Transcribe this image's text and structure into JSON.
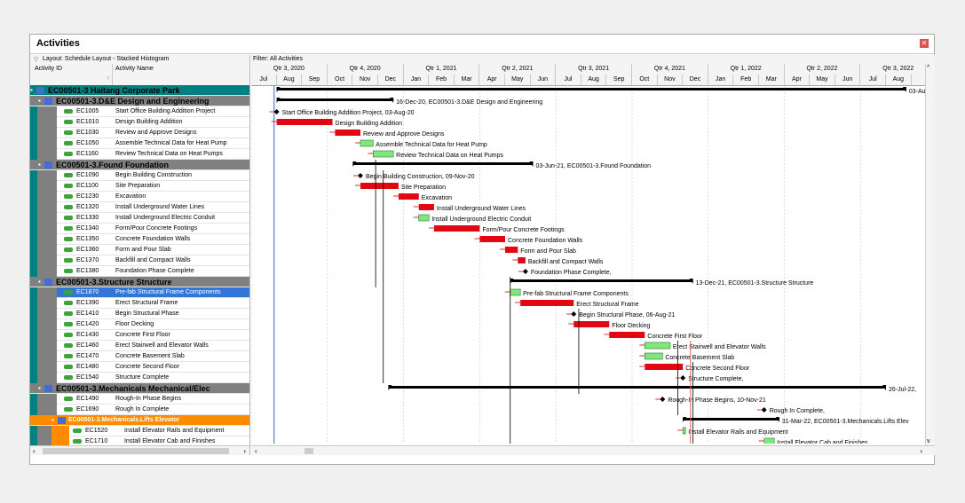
{
  "window": {
    "title": "Activities"
  },
  "left": {
    "layout_label": "Layout: Schedule Layout - Stacked Histogram",
    "col_id": "Activity ID",
    "col_name": "Activity Name"
  },
  "right": {
    "filter_label": "Filter: All Activities",
    "quarters": [
      "Qtr 3, 2020",
      "Qtr 4, 2020",
      "Qtr 1, 2021",
      "Qtr 2, 2021",
      "Qtr 3, 2021",
      "Qtr 4, 2021",
      "Qtr 1, 2022",
      "Qtr 2, 2022",
      "Qtr 3, 2022"
    ],
    "months": [
      "Jul",
      "Aug",
      "Sep",
      "Oct",
      "Nov",
      "Dec",
      "Jan",
      "Feb",
      "Mar",
      "Apr",
      "May",
      "Jun",
      "Jul",
      "Aug",
      "Sep",
      "Oct",
      "Nov",
      "Dec",
      "Jan",
      "Feb",
      "Mar",
      "Apr",
      "May",
      "Jun",
      "Jul",
      "Aug"
    ]
  },
  "rows": [
    {
      "type": "group0",
      "name": "EC00501-3  Haitang Corporate Park"
    },
    {
      "type": "group",
      "name": "EC00501-3.D&E  Design and Engineering"
    },
    {
      "type": "act",
      "id": "EC1005",
      "name": "Start Office Building Addition Project"
    },
    {
      "type": "act",
      "id": "EC1010",
      "name": "Design Building Addition"
    },
    {
      "type": "act",
      "id": "EC1030",
      "name": "Review and Approve Designs"
    },
    {
      "type": "act",
      "id": "EC1050",
      "name": "Assemble Technical Data for Heat Pump"
    },
    {
      "type": "act",
      "id": "EC1160",
      "name": "Review Technical Data on Heat Pumps"
    },
    {
      "type": "group",
      "name": "EC00501-3.Found  Foundation"
    },
    {
      "type": "act",
      "id": "EC1090",
      "name": "Begin Building Construction"
    },
    {
      "type": "act",
      "id": "EC1100",
      "name": "Site Preparation"
    },
    {
      "type": "act",
      "id": "EC1230",
      "name": "Excavation"
    },
    {
      "type": "act",
      "id": "EC1320",
      "name": "Install Underground Water Lines"
    },
    {
      "type": "act",
      "id": "EC1330",
      "name": "Install Underground Electric Conduit"
    },
    {
      "type": "act",
      "id": "EC1340",
      "name": "Form/Pour Concrete Footings"
    },
    {
      "type": "act",
      "id": "EC1350",
      "name": "Concrete Foundation Walls"
    },
    {
      "type": "act",
      "id": "EC1360",
      "name": "Form and Pour Slab"
    },
    {
      "type": "act",
      "id": "EC1370",
      "name": "Backfill and Compact Walls"
    },
    {
      "type": "act",
      "id": "EC1380",
      "name": "Foundation Phase Complete"
    },
    {
      "type": "group",
      "name": "EC00501-3.Structure  Structure"
    },
    {
      "type": "act",
      "id": "EC1870",
      "name": "Pre-fab Structural Frame Components",
      "selected": true
    },
    {
      "type": "act",
      "id": "EC1390",
      "name": "Erect Structural Frame"
    },
    {
      "type": "act",
      "id": "EC1410",
      "name": "Begin Structural Phase"
    },
    {
      "type": "act",
      "id": "EC1420",
      "name": "Floor Decking"
    },
    {
      "type": "act",
      "id": "EC1430",
      "name": "Concrete First Floor"
    },
    {
      "type": "act",
      "id": "EC1460",
      "name": "Erect Stairwell and Elevator Walls"
    },
    {
      "type": "act",
      "id": "EC1470",
      "name": "Concrete Basement Slab"
    },
    {
      "type": "act",
      "id": "EC1480",
      "name": "Concrete Second Floor"
    },
    {
      "type": "act",
      "id": "EC1540",
      "name": "Structure Complete"
    },
    {
      "type": "group",
      "name": "EC00501-3.Mechanicals  Mechanical/Elec"
    },
    {
      "type": "act",
      "id": "EC1490",
      "name": "Rough-In Phase Begins"
    },
    {
      "type": "act",
      "id": "EC1690",
      "name": "Rough In Complete"
    },
    {
      "type": "subgroup",
      "name": "EC00501-3.Mechanicals.Lifts  Elevator"
    },
    {
      "type": "act2",
      "id": "EC1520",
      "name": "Install Elevator Rails and Equipment"
    },
    {
      "type": "act2",
      "id": "EC1710",
      "name": "Install Elevator Cab and Finishes"
    }
  ],
  "bars": [
    {
      "row": 0,
      "kind": "summary",
      "start": 1,
      "end": 25.8,
      "label": "03-Aug-"
    },
    {
      "row": 1,
      "kind": "summary",
      "start": 1,
      "end": 5.6,
      "label": "16-Dec-20, EC00501-3.D&E  Design and Engineering"
    },
    {
      "row": 2,
      "kind": "milestone",
      "start": 1,
      "label": "Start Office Building Addition Project, 03-Aug-20"
    },
    {
      "row": 3,
      "kind": "crit",
      "start": 1,
      "end": 3.2,
      "label": "Design Building Addition"
    },
    {
      "row": 4,
      "kind": "crit",
      "start": 3.3,
      "end": 4.3,
      "label": "Review and Approve Designs"
    },
    {
      "row": 5,
      "kind": "norm",
      "start": 4.3,
      "end": 4.8,
      "label": "Assemble Technical Data for Heat Pump"
    },
    {
      "row": 6,
      "kind": "norm",
      "start": 4.8,
      "end": 5.6,
      "label": "Review Technical Data on Heat Pumps"
    },
    {
      "row": 7,
      "kind": "summary",
      "start": 4,
      "end": 11.1,
      "label": "03-Jun-21, EC00501-3.Found  Foundation"
    },
    {
      "row": 8,
      "kind": "milestone",
      "start": 4.3,
      "label": "Begin Building Construction, 09-Nov-20"
    },
    {
      "row": 9,
      "kind": "crit",
      "start": 4.3,
      "end": 5.8,
      "label": "Site Preparation"
    },
    {
      "row": 10,
      "kind": "crit",
      "start": 5.8,
      "end": 6.6,
      "label": "Excavation"
    },
    {
      "row": 11,
      "kind": "crit",
      "start": 6.6,
      "end": 7.2,
      "label": "Install Underground Water Lines"
    },
    {
      "row": 12,
      "kind": "norm",
      "start": 6.6,
      "end": 7.0,
      "label": "Install Underground Electric Conduit"
    },
    {
      "row": 13,
      "kind": "crit",
      "start": 7.2,
      "end": 9.0,
      "label": "Form/Pour Concrete Footings"
    },
    {
      "row": 14,
      "kind": "crit",
      "start": 9.0,
      "end": 10.0,
      "label": "Concrete Foundation Walls"
    },
    {
      "row": 15,
      "kind": "crit",
      "start": 10.0,
      "end": 10.5,
      "label": "Form and Pour Slab"
    },
    {
      "row": 16,
      "kind": "crit",
      "start": 10.5,
      "end": 10.8,
      "label": "Backfill and Compact Walls"
    },
    {
      "row": 17,
      "kind": "milestone",
      "start": 10.8,
      "label": "Foundation Phase Complete,"
    },
    {
      "row": 18,
      "kind": "summary",
      "start": 10.2,
      "end": 17.4,
      "label": "13-Dec-21, EC00501-3.Structure  Structure"
    },
    {
      "row": 19,
      "kind": "norm",
      "start": 10.2,
      "end": 10.6,
      "label": "Pre-fab Structural Frame Components"
    },
    {
      "row": 20,
      "kind": "crit",
      "start": 10.6,
      "end": 12.7,
      "label": "Erect Structural Frame"
    },
    {
      "row": 21,
      "kind": "milestone",
      "start": 12.7,
      "label": "Begin Structural Phase, 06-Aug-21"
    },
    {
      "row": 22,
      "kind": "crit",
      "start": 12.7,
      "end": 14.1,
      "label": "Floor Decking"
    },
    {
      "row": 23,
      "kind": "crit",
      "start": 14.1,
      "end": 15.5,
      "label": "Concrete First Floor"
    },
    {
      "row": 24,
      "kind": "norm",
      "start": 15.5,
      "end": 16.5,
      "label": "Erect Stairwell and Elevator Walls"
    },
    {
      "row": 25,
      "kind": "norm",
      "start": 15.5,
      "end": 16.2,
      "label": "Concrete Basement Slab"
    },
    {
      "row": 26,
      "kind": "crit",
      "start": 15.5,
      "end": 17.0,
      "label": "Concrete Second Floor"
    },
    {
      "row": 27,
      "kind": "milestone",
      "start": 17.0,
      "label": "Structure Complete,"
    },
    {
      "row": 28,
      "kind": "summary",
      "start": 5.4,
      "end": 25.0,
      "label": "26-Jul-22,"
    },
    {
      "row": 29,
      "kind": "milestone",
      "start": 16.2,
      "label": "Rough-In Phase Begins, 10-Nov-21"
    },
    {
      "row": 30,
      "kind": "milestone",
      "start": 20.2,
      "label": "Rough In Complete,"
    },
    {
      "row": 31,
      "kind": "summary",
      "start": 17.0,
      "end": 20.8,
      "label": "31-Mar-22, EC00501-3.Mechanicals.Lifts  Elev"
    },
    {
      "row": 32,
      "kind": "norm",
      "start": 17.0,
      "end": 17.1,
      "label": "Install Elevator Rails and Equipment"
    },
    {
      "row": 33,
      "kind": "norm",
      "start": 20.2,
      "end": 20.6,
      "label": "Install Elevator Cab and Finishes"
    }
  ],
  "colors": {
    "crit": "#e30613",
    "norm": "#7ee87e",
    "summary": "#000000",
    "group0": "#008080",
    "group": "#808080",
    "subgroup": "#ff8c00",
    "select": "#3176d8"
  }
}
